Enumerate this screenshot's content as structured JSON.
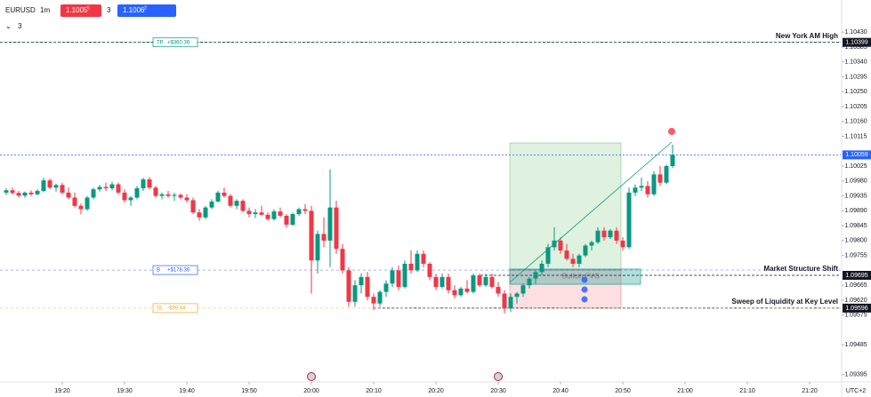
{
  "chart_data": {
    "type": "candlestick",
    "header": {
      "symbol": "EURUSD",
      "interval": "1m",
      "sell_price": "1.1005",
      "sell_pip": "5",
      "spread": "3",
      "buy_price": "1.1006",
      "buy_pip": "2",
      "indicators": "3"
    },
    "timezone": "UTC+2",
    "up_color": "#089981",
    "down_color": "#f23645",
    "ylim": [
      1.09373,
      1.10527
    ],
    "yticks": [
      {
        "value": 1.1043,
        "label": "1.10430"
      },
      {
        "value": 1.10385,
        "label": "1.10385"
      },
      {
        "value": 1.1034,
        "label": "1.10340"
      },
      {
        "value": 1.10295,
        "label": "1.10295"
      },
      {
        "value": 1.1025,
        "label": "1.10250"
      },
      {
        "value": 1.10205,
        "label": "1.10205"
      },
      {
        "value": 1.1016,
        "label": "1.10160"
      },
      {
        "value": 1.10115,
        "label": "1.10115"
      },
      {
        "value": 1.10025,
        "label": "1.10025"
      },
      {
        "value": 1.0998,
        "label": "1.09980"
      },
      {
        "value": 1.09935,
        "label": "1.09935"
      },
      {
        "value": 1.0989,
        "label": "1.09890"
      },
      {
        "value": 1.09845,
        "label": "1.09845"
      },
      {
        "value": 1.098,
        "label": "1.09800"
      },
      {
        "value": 1.09755,
        "label": "1.09755"
      },
      {
        "value": 1.09665,
        "label": "1.09665"
      },
      {
        "value": 1.0962,
        "label": "1.09620"
      },
      {
        "value": 1.09575,
        "label": "1.09575"
      },
      {
        "value": 1.09485,
        "label": "1.09485"
      },
      {
        "value": 1.09395,
        "label": "1.09395"
      }
    ],
    "xticks": [
      "19:20",
      "19:30",
      "19:40",
      "19:50",
      "20:00",
      "20:10",
      "20:20",
      "20:30",
      "20:40",
      "20:50",
      "21:00",
      "21:10",
      "21:20"
    ],
    "candles": [
      [
        1.09945,
        1.09958,
        1.09938,
        1.09952
      ],
      [
        1.09952,
        1.0996,
        1.0994,
        1.09944
      ],
      [
        1.09944,
        1.0995,
        1.0993,
        1.09936
      ],
      [
        1.09936,
        1.09948,
        1.0993,
        1.09945
      ],
      [
        1.09945,
        1.09952,
        1.09935,
        1.0994
      ],
      [
        1.0994,
        1.09955,
        1.09936,
        1.0995
      ],
      [
        1.0995,
        1.0999,
        1.09946,
        1.09982
      ],
      [
        1.09982,
        1.09988,
        1.09955,
        1.0996
      ],
      [
        1.0996,
        1.09972,
        1.09948,
        1.09968
      ],
      [
        1.09968,
        1.09975,
        1.0994,
        1.09945
      ],
      [
        1.09945,
        1.0996,
        1.09925,
        1.0993
      ],
      [
        1.0993,
        1.09945,
        1.099,
        1.09905
      ],
      [
        1.09905,
        1.09912,
        1.0988,
        1.09895
      ],
      [
        1.09895,
        1.09935,
        1.0989,
        1.0993
      ],
      [
        1.0993,
        1.0996,
        1.09925,
        1.09955
      ],
      [
        1.09955,
        1.09968,
        1.09948,
        1.09962
      ],
      [
        1.09962,
        1.09975,
        1.0995,
        1.09958
      ],
      [
        1.09958,
        1.09978,
        1.09952,
        1.0997
      ],
      [
        1.0997,
        1.09975,
        1.0994,
        1.09945
      ],
      [
        1.09945,
        1.09955,
        1.09915,
        1.09922
      ],
      [
        1.09922,
        1.09935,
        1.09905,
        1.0993
      ],
      [
        1.0993,
        1.09965,
        1.09925,
        1.09958
      ],
      [
        1.09958,
        1.0999,
        1.0995,
        1.09985
      ],
      [
        1.09985,
        1.09992,
        1.09955,
        1.0996
      ],
      [
        1.0996,
        1.09965,
        1.0993,
        1.09935
      ],
      [
        1.09935,
        1.09945,
        1.09925,
        1.0994
      ],
      [
        1.0994,
        1.0995,
        1.0993,
        1.09935
      ],
      [
        1.09935,
        1.09945,
        1.0992,
        1.09938
      ],
      [
        1.09938,
        1.09942,
        1.09925,
        1.0993
      ],
      [
        1.0993,
        1.0994,
        1.09915,
        1.09922
      ],
      [
        1.09922,
        1.0993,
        1.0988,
        1.09885
      ],
      [
        1.09885,
        1.09895,
        1.0986,
        1.0987
      ],
      [
        1.0987,
        1.09905,
        1.09865,
        1.099
      ],
      [
        1.099,
        1.09925,
        1.09895,
        1.09918
      ],
      [
        1.09918,
        1.0995,
        1.09915,
        1.09945
      ],
      [
        1.09945,
        1.0996,
        1.0993,
        1.09935
      ],
      [
        1.09935,
        1.0994,
        1.099,
        1.09905
      ],
      [
        1.09905,
        1.09925,
        1.09895,
        1.0992
      ],
      [
        1.0992,
        1.09925,
        1.09885,
        1.0989
      ],
      [
        1.0989,
        1.099,
        1.0987,
        1.0988
      ],
      [
        1.0988,
        1.09895,
        1.09868,
        1.09885
      ],
      [
        1.09885,
        1.09905,
        1.09875,
        1.09878
      ],
      [
        1.09878,
        1.09885,
        1.0986,
        1.09865
      ],
      [
        1.09865,
        1.09895,
        1.0986,
        1.09888
      ],
      [
        1.09888,
        1.099,
        1.0987,
        1.09875
      ],
      [
        1.09875,
        1.0988,
        1.0984,
        1.09848
      ],
      [
        1.09848,
        1.09885,
        1.09845,
        1.0988
      ],
      [
        1.0988,
        1.099,
        1.09875,
        1.09895
      ],
      [
        1.09895,
        1.0991,
        1.0988,
        1.0989
      ],
      [
        1.0989,
        1.09905,
        1.0964,
        1.0974
      ],
      [
        1.0974,
        1.0983,
        1.097,
        1.0982
      ],
      [
        1.0982,
        1.0987,
        1.0978,
        1.098
      ],
      [
        1.098,
        1.10015,
        1.0972,
        1.099
      ],
      [
        1.099,
        1.0992,
        1.0976,
        1.09775
      ],
      [
        1.09775,
        1.0979,
        1.097,
        1.0971
      ],
      [
        1.0971,
        1.0972,
        1.096,
        1.09615
      ],
      [
        1.09615,
        1.0968,
        1.096,
        1.09665
      ],
      [
        1.09665,
        1.097,
        1.0964,
        1.0969
      ],
      [
        1.0969,
        1.09705,
        1.0962,
        1.0963
      ],
      [
        1.0963,
        1.0964,
        1.0959,
        1.0961
      ],
      [
        1.0961,
        1.0965,
        1.096,
        1.09645
      ],
      [
        1.09645,
        1.0968,
        1.0963,
        1.0967
      ],
      [
        1.0967,
        1.0972,
        1.0966,
        1.0971
      ],
      [
        1.0971,
        1.09725,
        1.0965,
        1.0966
      ],
      [
        1.0966,
        1.0974,
        1.09655,
        1.0973
      ],
      [
        1.0973,
        1.0977,
        1.097,
        1.0971
      ],
      [
        1.0971,
        1.0977,
        1.09705,
        1.0976
      ],
      [
        1.0976,
        1.0977,
        1.0972,
        1.0973
      ],
      [
        1.0973,
        1.09735,
        1.0968,
        1.0969
      ],
      [
        1.0969,
        1.097,
        1.0965,
        1.0966
      ],
      [
        1.0966,
        1.097,
        1.09655,
        1.0969
      ],
      [
        1.0969,
        1.097,
        1.0964,
        1.0965
      ],
      [
        1.0965,
        1.09665,
        1.09625,
        1.09635
      ],
      [
        1.09635,
        1.0966,
        1.0963,
        1.09655
      ],
      [
        1.09655,
        1.0968,
        1.0964,
        1.09645
      ],
      [
        1.09645,
        1.097,
        1.0964,
        1.09695
      ],
      [
        1.09695,
        1.097,
        1.0966,
        1.09665
      ],
      [
        1.09665,
        1.097,
        1.0966,
        1.0969
      ],
      [
        1.0969,
        1.097,
        1.09655,
        1.0966
      ],
      [
        1.0966,
        1.09675,
        1.0963,
        1.0964
      ],
      [
        1.0964,
        1.0965,
        1.0958,
        1.09595
      ],
      [
        1.09595,
        1.0964,
        1.09585,
        1.0963
      ],
      [
        1.0963,
        1.09645,
        1.0961,
        1.0964
      ],
      [
        1.0964,
        1.0967,
        1.0963,
        1.09665
      ],
      [
        1.09665,
        1.0969,
        1.09655,
        1.09685
      ],
      [
        1.09685,
        1.0971,
        1.0967,
        1.09705
      ],
      [
        1.09705,
        1.0974,
        1.09695,
        1.0973
      ],
      [
        1.0973,
        1.0979,
        1.0972,
        1.0978
      ],
      [
        1.0978,
        1.0984,
        1.0977,
        1.098
      ],
      [
        1.098,
        1.0981,
        1.0976,
        1.0977
      ],
      [
        1.0977,
        1.0979,
        1.0974,
        1.09745
      ],
      [
        1.09745,
        1.0976,
        1.0972,
        1.0973
      ],
      [
        1.0973,
        1.0976,
        1.0972,
        1.09755
      ],
      [
        1.09755,
        1.0979,
        1.0975,
        1.09785
      ],
      [
        1.09785,
        1.098,
        1.0977,
        1.09795
      ],
      [
        1.09795,
        1.0984,
        1.0979,
        1.0983
      ],
      [
        1.0983,
        1.0984,
        1.098,
        1.0981
      ],
      [
        1.0981,
        1.09835,
        1.09805,
        1.0983
      ],
      [
        1.0983,
        1.0984,
        1.0979,
        1.098
      ],
      [
        1.098,
        1.0981,
        1.0977,
        1.0978
      ],
      [
        1.0978,
        1.0996,
        1.09775,
        1.09945
      ],
      [
        1.09945,
        1.0997,
        1.09935,
        1.0996
      ],
      [
        1.0996,
        1.0999,
        1.0995,
        1.09965
      ],
      [
        1.09965,
        1.0998,
        1.0993,
        1.0994
      ],
      [
        1.0994,
        1.1001,
        1.09935,
        1.1
      ],
      [
        1.1,
        1.10025,
        1.09965,
        1.09975
      ],
      [
        1.09975,
        1.1003,
        1.0997,
        1.10025
      ],
      [
        1.10025,
        1.1009,
        1.1002,
        1.10059
      ]
    ],
    "levels": [
      {
        "price": {
          "value": 1.10399,
          "label": "1.10399"
        },
        "text": "New York AM High"
      },
      {
        "price": {
          "value": 1.09695,
          "label": "1.09695"
        },
        "text": "Market Structure Shift"
      },
      {
        "price": {
          "value": 1.09596,
          "label": "1.09596"
        },
        "text": "Sweep of Liquidity at Key Level"
      }
    ],
    "last_price": {
      "value": 1.10059,
      "label": "1.10059"
    },
    "orders": [
      {
        "side": "TP",
        "pnl": "+$360.36",
        "price": 1.10399
      },
      {
        "side": "B",
        "pnl": "+$178.36",
        "price": 1.09711
      },
      {
        "side": "SL",
        "pnl": "-$99.84",
        "price": 1.09596
      }
    ],
    "position": {
      "target": 1.10095,
      "entry": 1.09711,
      "stop": 1.09596
    },
    "fvg": {
      "label": "Bullish FVG",
      "top": 1.09714,
      "bottom": 1.09668
    }
  }
}
